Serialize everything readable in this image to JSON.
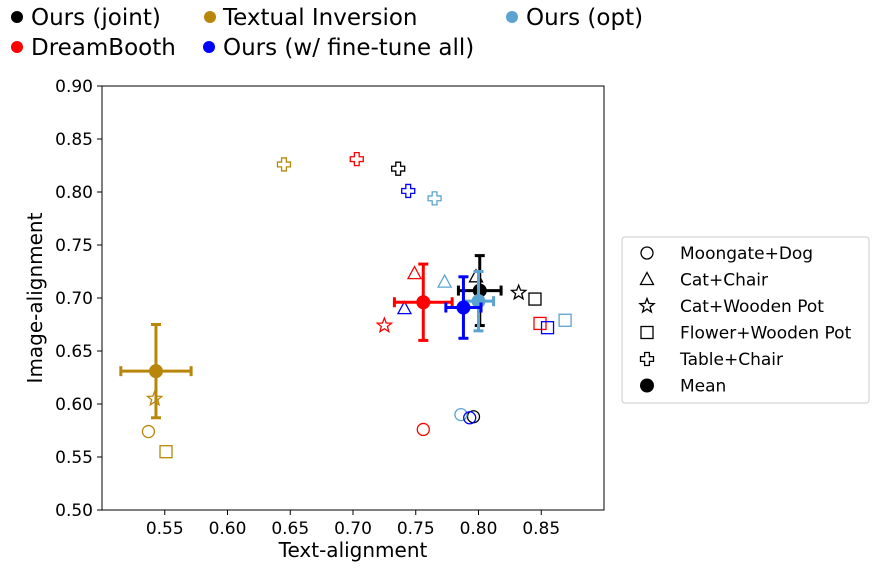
{
  "chart_data": {
    "type": "scatter",
    "xlabel": "Text-alignment",
    "ylabel": "Image-alignment",
    "xlim": [
      0.5,
      0.9
    ],
    "ylim": [
      0.5,
      0.9
    ],
    "xticks": [
      "0.55",
      "0.60",
      "0.65",
      "0.70",
      "0.75",
      "0.80",
      "0.85"
    ],
    "yticks": [
      "0.50",
      "0.55",
      "0.60",
      "0.65",
      "0.70",
      "0.75",
      "0.80",
      "0.85",
      "0.90"
    ],
    "grid": false,
    "method_legend": {
      "placement": "top",
      "items": [
        {
          "label": "Ours (joint)",
          "color": "#000000"
        },
        {
          "label": "Textual Inversion",
          "color": "#b8860b"
        },
        {
          "label": "Ours (opt)",
          "color": "#5ba3d0"
        },
        {
          "label": "DreamBooth",
          "color": "#ff0000"
        },
        {
          "label": "Ours (w/ fine-tune all)",
          "color": "#0000ff"
        }
      ]
    },
    "marker_legend": {
      "placement": "right",
      "items": [
        {
          "label": "Moongate+Dog",
          "marker": "circle"
        },
        {
          "label": "Cat+Chair",
          "marker": "triangle"
        },
        {
          "label": "Cat+Wooden Pot",
          "marker": "star"
        },
        {
          "label": "Flower+Wooden Pot",
          "marker": "square"
        },
        {
          "label": "Table+Chair",
          "marker": "plus"
        },
        {
          "label": "Mean",
          "marker": "filled-circle"
        }
      ]
    },
    "series": [
      {
        "name": "Ours (joint)",
        "color": "#000000",
        "points": [
          {
            "marker": "circle",
            "x": 0.796,
            "y": 0.588
          },
          {
            "marker": "triangle",
            "x": 0.798,
            "y": 0.72
          },
          {
            "marker": "star",
            "x": 0.832,
            "y": 0.705
          },
          {
            "marker": "square",
            "x": 0.845,
            "y": 0.699
          },
          {
            "marker": "plus",
            "x": 0.736,
            "y": 0.822
          }
        ],
        "mean": {
          "x": 0.801,
          "y": 0.707,
          "xerr": 0.017,
          "yerr": 0.033
        }
      },
      {
        "name": "Textual Inversion",
        "color": "#b8860b",
        "points": [
          {
            "marker": "circle",
            "x": 0.537,
            "y": 0.574
          },
          {
            "marker": "star",
            "x": 0.542,
            "y": 0.605
          },
          {
            "marker": "square",
            "x": 0.551,
            "y": 0.555
          },
          {
            "marker": "plus",
            "x": 0.645,
            "y": 0.826
          }
        ],
        "mean": {
          "x": 0.543,
          "y": 0.631,
          "xerr": 0.028,
          "yerr": 0.044
        }
      },
      {
        "name": "Ours (opt)",
        "color": "#5ba3d0",
        "points": [
          {
            "marker": "circle",
            "x": 0.786,
            "y": 0.59
          },
          {
            "marker": "triangle",
            "x": 0.773,
            "y": 0.715
          },
          {
            "marker": "square",
            "x": 0.869,
            "y": 0.679
          },
          {
            "marker": "plus",
            "x": 0.765,
            "y": 0.794
          }
        ],
        "mean": {
          "x": 0.8,
          "y": 0.697,
          "xerr": 0.012,
          "yerr": 0.028
        }
      },
      {
        "name": "DreamBooth",
        "color": "#ff0000",
        "points": [
          {
            "marker": "circle",
            "x": 0.756,
            "y": 0.576
          },
          {
            "marker": "triangle",
            "x": 0.749,
            "y": 0.723
          },
          {
            "marker": "star",
            "x": 0.725,
            "y": 0.674
          },
          {
            "marker": "square",
            "x": 0.849,
            "y": 0.676
          },
          {
            "marker": "plus",
            "x": 0.703,
            "y": 0.831
          }
        ],
        "mean": {
          "x": 0.756,
          "y": 0.696,
          "xerr": 0.023,
          "yerr": 0.036
        }
      },
      {
        "name": "Ours (w/ fine-tune all)",
        "color": "#0000ff",
        "points": [
          {
            "marker": "circle",
            "x": 0.793,
            "y": 0.587
          },
          {
            "marker": "triangle",
            "x": 0.741,
            "y": 0.69
          },
          {
            "marker": "square",
            "x": 0.855,
            "y": 0.672
          },
          {
            "marker": "plus",
            "x": 0.744,
            "y": 0.801
          }
        ],
        "mean": {
          "x": 0.788,
          "y": 0.691,
          "xerr": 0.014,
          "yerr": 0.029
        }
      }
    ]
  }
}
